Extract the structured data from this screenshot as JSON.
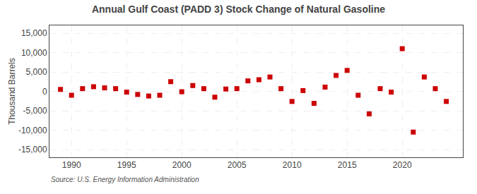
{
  "chart_data": {
    "type": "scatter",
    "title": "Annual Gulf Coast (PADD 3) Stock Change of Natural Gasoline",
    "ylabel": "Thousand Barrels",
    "annotations": [
      "Source: U.S. Energy Information Administration"
    ],
    "x": [
      1989,
      1990,
      1991,
      1992,
      1993,
      1994,
      1995,
      1996,
      1997,
      1998,
      1999,
      2000,
      2001,
      2002,
      2003,
      2004,
      2005,
      2006,
      2007,
      2008,
      2009,
      2010,
      2011,
      2012,
      2013,
      2014,
      2015,
      2016,
      2017,
      2018,
      2019,
      2020,
      2021,
      2022,
      2023,
      2024
    ],
    "values": [
      500,
      -1000,
      700,
      1200,
      900,
      700,
      -200,
      -800,
      -1200,
      -1000,
      2500,
      -100,
      1500,
      700,
      -1500,
      600,
      700,
      2700,
      3000,
      3700,
      700,
      -2600,
      200,
      -3100,
      1100,
      4100,
      5400,
      -1000,
      -5800,
      700,
      -200,
      11000,
      -10500,
      3700,
      700,
      -2600
    ],
    "color": "#cc0000",
    "marker": "square",
    "xlim": [
      1988.0,
      2025.5
    ],
    "ylim": [
      -17000,
      17000
    ],
    "xticks": [
      1990,
      1995,
      2000,
      2005,
      2010,
      2015,
      2020
    ],
    "yticks": [
      {
        "value": -15000,
        "label": "-15,000"
      },
      {
        "value": -10000,
        "label": "-10,000"
      },
      {
        "value": -5000,
        "label": "-5,000"
      },
      0,
      {
        "value": 5000,
        "label": "5,000"
      },
      {
        "value": 10000,
        "label": "10,000"
      },
      {
        "value": 15000,
        "label": "15,000"
      }
    ],
    "grid": true
  }
}
